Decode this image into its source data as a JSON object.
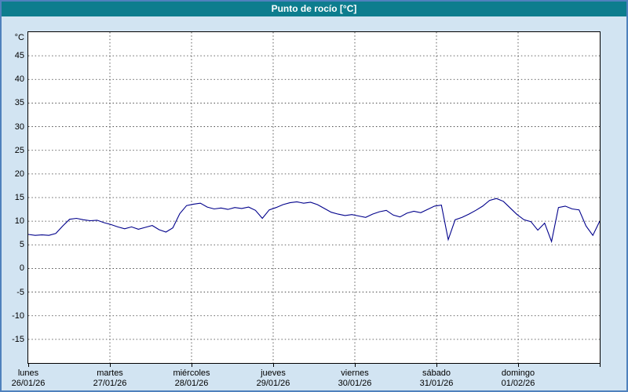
{
  "window": {
    "title": "Punto de rocío [°C]",
    "title_bar_color": "#0d7d8e",
    "background_color": "#d2e4f2",
    "border_color": "#4f81bd"
  },
  "chart_data": {
    "type": "line",
    "title": "Punto de rocío [°C]",
    "ylabel": "°C",
    "xlabel": "",
    "ylim": [
      -20,
      50
    ],
    "y_ticks": [
      45,
      40,
      35,
      30,
      25,
      20,
      15,
      10,
      5,
      0,
      -5,
      -10,
      -15
    ],
    "grid": "dashed",
    "grid_color": "#333333",
    "x_hours_total": 168,
    "days": [
      {
        "name": "lunes",
        "date": "26/01/26"
      },
      {
        "name": "martes",
        "date": "27/01/26"
      },
      {
        "name": "miércoles",
        "date": "28/01/26"
      },
      {
        "name": "jueves",
        "date": "29/01/26"
      },
      {
        "name": "viernes",
        "date": "30/01/26"
      },
      {
        "name": "sábado",
        "date": "31/01/26"
      },
      {
        "name": "domingo",
        "date": "01/02/26"
      }
    ],
    "series": [
      {
        "name": "Punto de rocío",
        "color": "#00008b",
        "sample_interval_hours": 2,
        "values": [
          7.2,
          7.0,
          7.1,
          7.0,
          7.4,
          9.0,
          10.4,
          10.6,
          10.3,
          10.1,
          10.2,
          9.7,
          9.3,
          8.8,
          8.4,
          8.8,
          8.3,
          8.7,
          9.1,
          8.2,
          7.7,
          8.6,
          11.6,
          13.3,
          13.6,
          13.8,
          13.0,
          12.6,
          12.8,
          12.5,
          12.9,
          12.7,
          13.0,
          12.3,
          10.6,
          12.4,
          12.9,
          13.5,
          13.9,
          14.1,
          13.8,
          14.0,
          13.5,
          12.7,
          11.9,
          11.5,
          11.2,
          11.4,
          11.1,
          10.8,
          11.5,
          12.0,
          12.3,
          11.3,
          10.9,
          11.7,
          12.1,
          11.8,
          12.5,
          13.2,
          13.4,
          6.1,
          10.3,
          10.8,
          11.5,
          12.3,
          13.2,
          14.4,
          14.8,
          14.2,
          12.8,
          11.4,
          10.3,
          9.9,
          8.1,
          9.6,
          5.7,
          12.9,
          13.2,
          12.6,
          12.4,
          9.0,
          7.0,
          10.0
        ]
      }
    ]
  }
}
